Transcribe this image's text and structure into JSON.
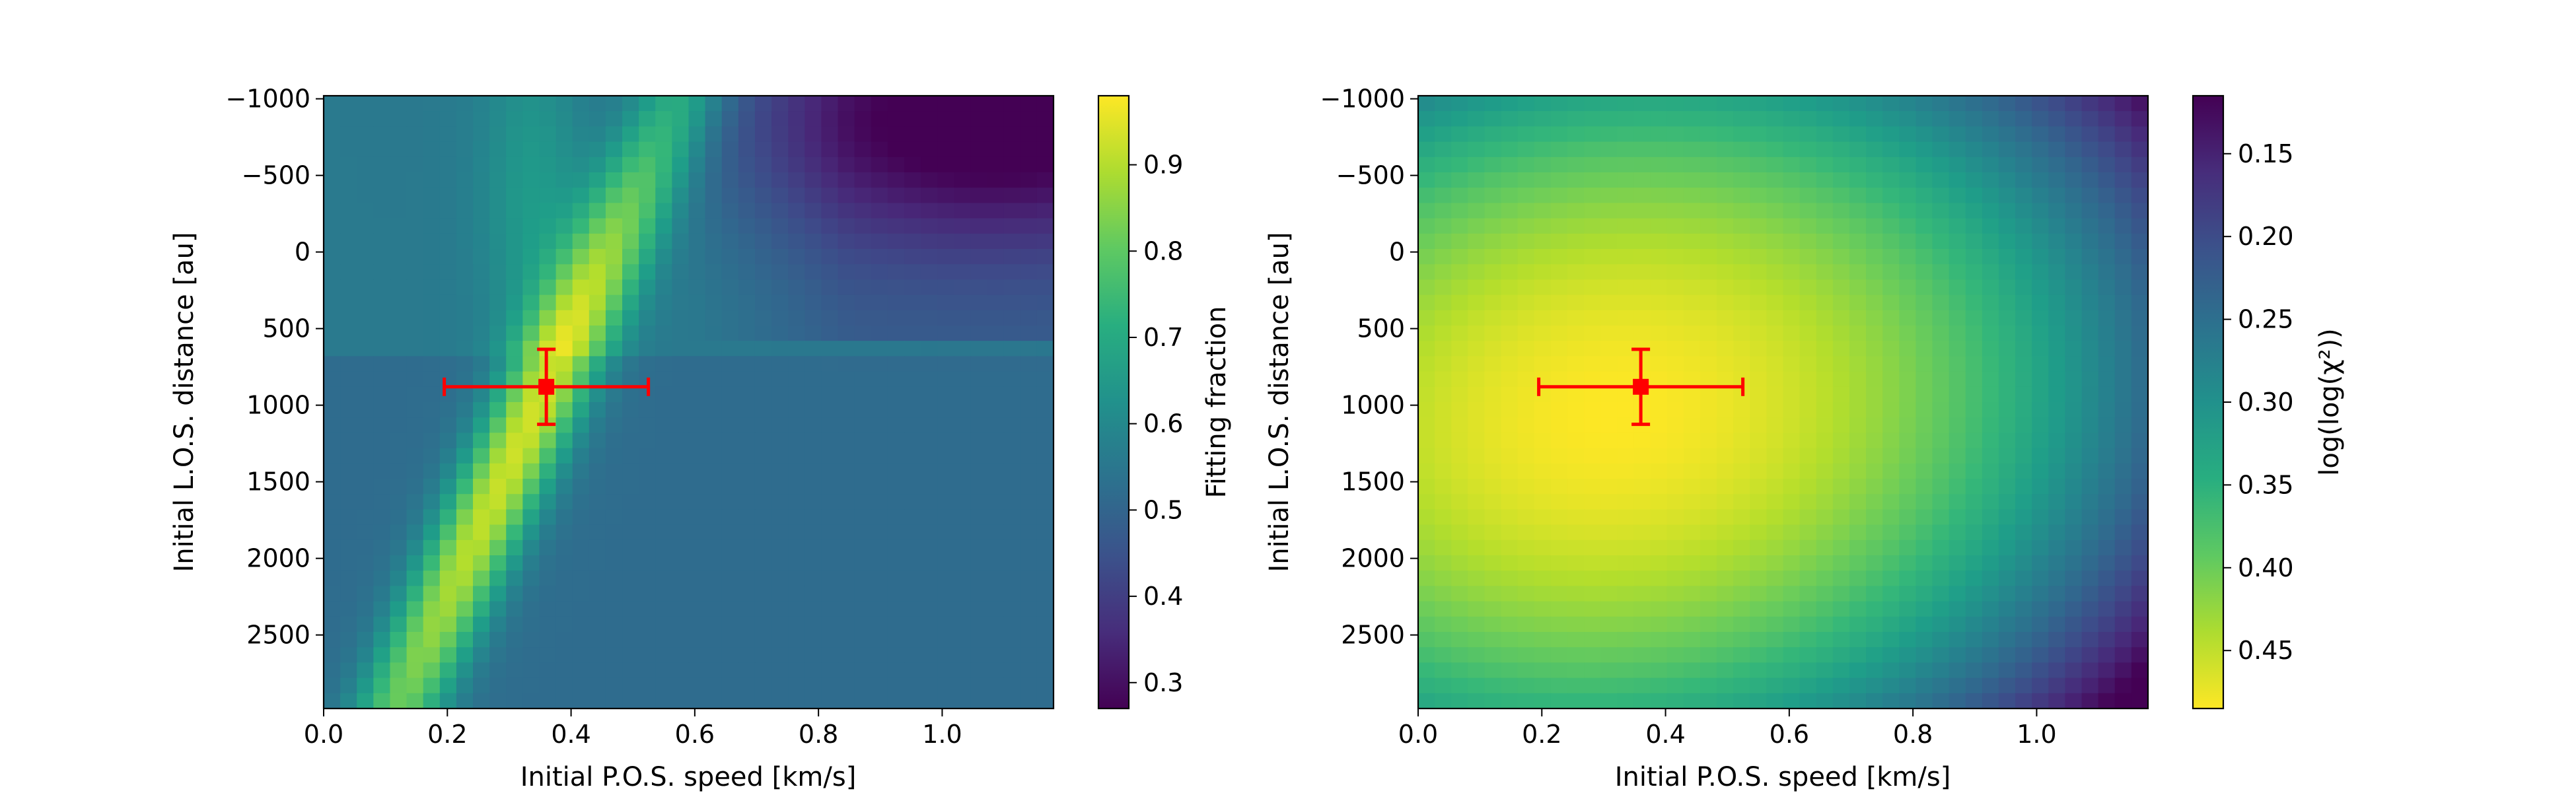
{
  "chart_data": [
    {
      "type": "heatmap",
      "xlabel": "Initial P.O.S. speed [km/s]",
      "ylabel": "Initial L.O.S. distance [au]",
      "xlim": [
        0.0,
        1.18
      ],
      "ylim": [
        2980,
        -1020
      ],
      "xticks": [
        0.0,
        0.2,
        0.4,
        0.6,
        0.8,
        1.0
      ],
      "xtick_labels": [
        "0.0",
        "0.2",
        "0.4",
        "0.6",
        "0.8",
        "1.0"
      ],
      "yticks": [
        -1000,
        -500,
        0,
        500,
        1000,
        1500,
        2000,
        2500
      ],
      "ytick_labels": [
        "−1000",
        "−500",
        "0",
        "500",
        "1000",
        "1500",
        "2000",
        "2500"
      ],
      "grid": false,
      "colormap": "viridis",
      "colorbar": {
        "label": "Fitting fraction",
        "range": [
          0.27,
          0.98
        ],
        "ticks": [
          0.3,
          0.4,
          0.5,
          0.6,
          0.7,
          0.8,
          0.9
        ],
        "tick_labels": [
          "0.3",
          "0.4",
          "0.5",
          "0.6",
          "0.7",
          "0.8",
          "0.9"
        ],
        "reversed": false
      },
      "best_fit": {
        "x": 0.36,
        "y": 880,
        "xerr": [
          0.165,
          0.165
        ],
        "yerr": [
          245,
          245
        ],
        "color": "#ff0000"
      },
      "grid_cells": {
        "nx": 44,
        "ny": 40
      }
    },
    {
      "type": "heatmap",
      "xlabel": "Initial P.O.S. speed [km/s]",
      "ylabel": "Initial L.O.S. distance [au]",
      "xlim": [
        0.0,
        1.18
      ],
      "ylim": [
        2980,
        -1020
      ],
      "xticks": [
        0.0,
        0.2,
        0.4,
        0.6,
        0.8,
        1.0
      ],
      "xtick_labels": [
        "0.0",
        "0.2",
        "0.4",
        "0.6",
        "0.8",
        "1.0"
      ],
      "yticks": [
        -1000,
        -500,
        0,
        500,
        1000,
        1500,
        2000,
        2500
      ],
      "ytick_labels": [
        "−1000",
        "−500",
        "0",
        "500",
        "1000",
        "1500",
        "2000",
        "2500"
      ],
      "grid": false,
      "colormap": "viridis_r",
      "colorbar": {
        "label": "log(log(χ²))",
        "range": [
          0.115,
          0.485
        ],
        "ticks": [
          0.15,
          0.2,
          0.25,
          0.3,
          0.35,
          0.4,
          0.45
        ],
        "tick_labels": [
          "0.15",
          "0.20",
          "0.25",
          "0.30",
          "0.35",
          "0.40",
          "0.45"
        ],
        "reversed": true
      },
      "best_fit": {
        "x": 0.36,
        "y": 880,
        "xerr": [
          0.165,
          0.165
        ],
        "yerr": [
          245,
          245
        ],
        "color": "#ff0000"
      },
      "grid_cells": {
        "nx": 44,
        "ny": 40
      }
    }
  ]
}
